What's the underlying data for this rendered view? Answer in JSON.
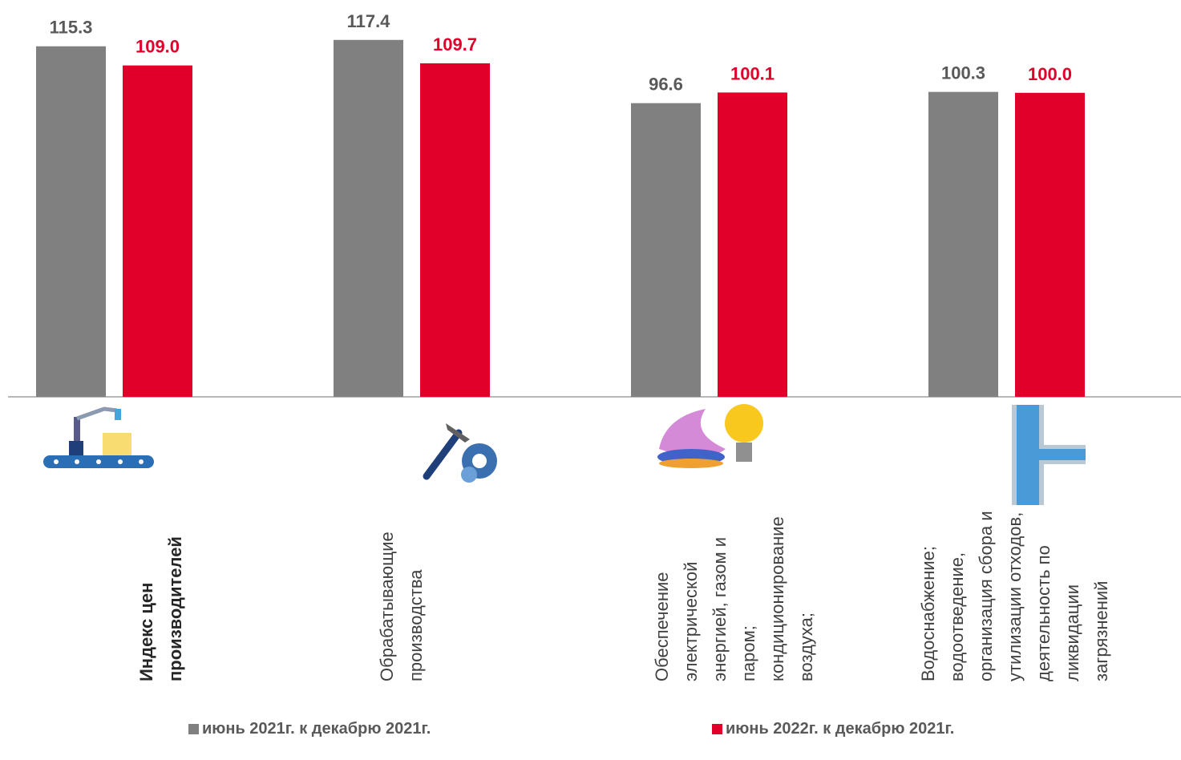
{
  "chart_data": {
    "type": "bar",
    "categories": [
      "Индекс цен производителей",
      "Обрабатывающие производства",
      "Обеспечение электрической энергией, газом и паром; кондиционирование воздуха;",
      "Водоснабжение; водоотведение, организация сбора и утилизации отходов, деятельность по ликвидации загрязнений"
    ],
    "series": [
      {
        "name": "июнь 2021г. к декабрю 2021г.",
        "color": "#808080",
        "values": [
          115.3,
          117.4,
          96.6,
          100.3
        ],
        "value_labels": [
          "115.3",
          "117.4",
          "96.6",
          "100.3"
        ]
      },
      {
        "name": "июнь 2022г. к декабрю 2021г.",
        "color": "#e0002a",
        "values": [
          109.0,
          109.7,
          100.1,
          100.0
        ],
        "value_labels": [
          "109.0",
          "109.7",
          "100.1",
          "100.0"
        ]
      }
    ],
    "ylim": [
      0,
      130
    ]
  }
}
